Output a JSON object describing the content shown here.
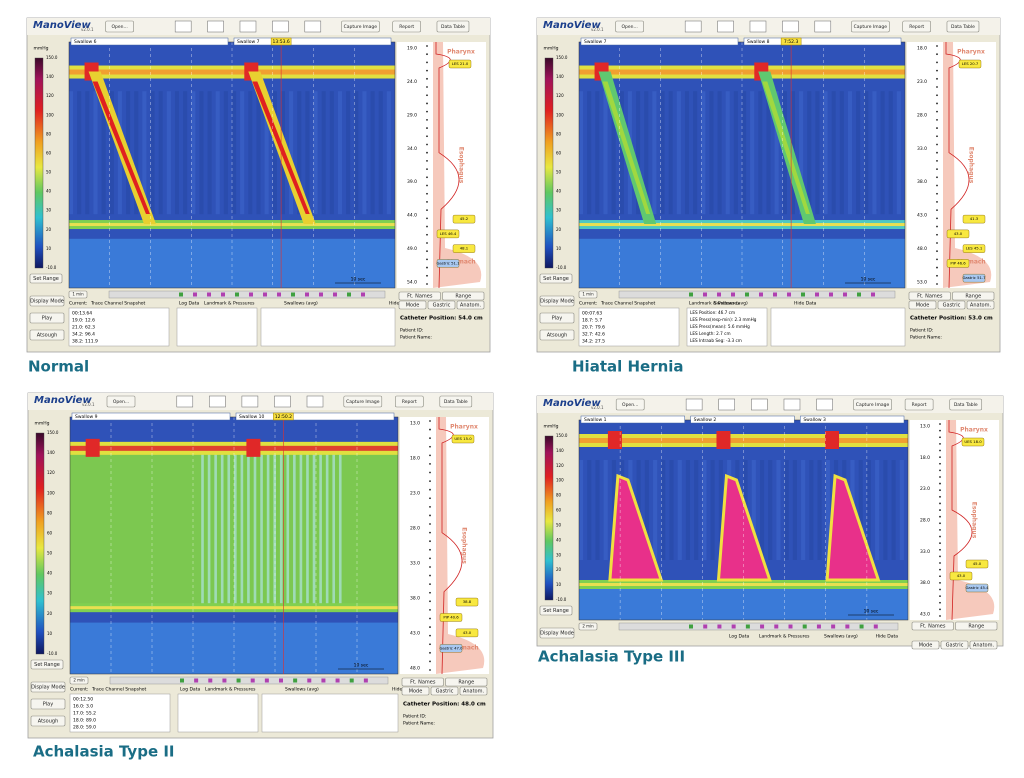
{
  "panels": [
    {
      "caption": "Normal",
      "logo": "ManoView",
      "version": "v2.0.1",
      "buttons": [
        "Open...",
        "Capture Image",
        "Report",
        "Data Table"
      ],
      "unit": "mmHg",
      "scale": [
        "150.0",
        "140",
        "120",
        "100",
        "80",
        "60",
        "50",
        "40",
        "30",
        "20",
        "10",
        "-10.0"
      ],
      "set_range": "Set Range",
      "controls": [
        "Display Mode",
        "Play",
        "Atsough"
      ],
      "swallows": [
        "Swallow 6",
        "Swallow 7"
      ],
      "time_marker": "13:53.6",
      "depths": [
        "19.0",
        "24.0",
        "29.0",
        "34.0",
        "39.0",
        "44.0",
        "49.0",
        "54.0"
      ],
      "regions": [
        "Pharynx",
        "Esophagus",
        "Stomach"
      ],
      "tags": [
        "LES 21.0",
        "45.2",
        "LES 46.4",
        "48.1",
        "Gastric 51.1"
      ],
      "timescale": "10 sec",
      "zoom": "1 min",
      "bottom": {
        "labels": [
          "Current:",
          "Trace Channel Snapshot",
          "Log Data",
          "Landmark & Pressures",
          "Swallows (avg)",
          "Hide Data"
        ],
        "buttons": [
          "Ft. Names",
          "Range",
          "Mode",
          "Gastric",
          "Anatom."
        ],
        "rows": [
          "00:13.64",
          "19.0: 12.6",
          "21.0: 62.3",
          "34.2: 96.4",
          "38.2: 111.9"
        ],
        "landmarks": [],
        "catheter": "Catheter Position: 54.0 cm",
        "patient": [
          "Patient ID:",
          "Patient Name:"
        ]
      }
    },
    {
      "caption": "Hiatal Hernia",
      "logo": "ManoView",
      "version": "v2.0.1",
      "buttons": [
        "Open...",
        "Capture Image",
        "Report",
        "Data Table"
      ],
      "unit": "mmHg",
      "scale": [
        "150.0",
        "140",
        "120",
        "100",
        "80",
        "60",
        "50",
        "40",
        "30",
        "20",
        "10",
        "-10.0"
      ],
      "set_range": "Set Range",
      "controls": [
        "Display Mode",
        "Play",
        "Atsough"
      ],
      "swallows": [
        "Swallow 7",
        "Swallow 8"
      ],
      "time_marker": "7:52.3",
      "depths": [
        "18.0",
        "23.0",
        "28.0",
        "33.0",
        "38.0",
        "43.0",
        "48.0",
        "53.0"
      ],
      "regions": [
        "Pharynx",
        "Esophagus",
        "Stomach"
      ],
      "tags": [
        "LES 20.7",
        "41.3",
        "43.0",
        "LES 45.1",
        "PIP 46.6",
        "Gastric 51.7"
      ],
      "timescale": "10 sec",
      "zoom": "1 min",
      "bottom": {
        "labels": [
          "Current:",
          "Trace Channel Snapshot",
          "Landmark & Pressures",
          "Swallows (avg)",
          "Hide Data"
        ],
        "buttons": [
          "Ft. Names",
          "Range",
          "Mode",
          "Gastric",
          "Anatom."
        ],
        "rows": [
          "00:07.63",
          "18.7: 5.7",
          "20.7: 79.6",
          "32.7: 42.6",
          "34.2: 27.5"
        ],
        "landmarks": [
          "LES Position: 46.7 cm",
          "LES Press(resp-min): 2.3 mmHg",
          "LES Press(mean): 5.6 mmHg",
          "LES Length: 2.7 cm",
          "LES Intraab Seg: -3.3 cm"
        ],
        "catheter": "Catheter Position: 53.0 cm",
        "patient": [
          "Patient ID:",
          "Patient Name:"
        ]
      }
    },
    {
      "caption": "Achalasia Type II",
      "logo": "ManoView",
      "version": "v2.0.1",
      "buttons": [
        "Open...",
        "Capture Image",
        "Report",
        "Data Table"
      ],
      "unit": "mmHg",
      "scale": [
        "150.0",
        "140",
        "120",
        "100",
        "80",
        "60",
        "50",
        "40",
        "30",
        "20",
        "10",
        "-10.0"
      ],
      "set_range": "Set Range",
      "controls": [
        "Display Mode",
        "Play",
        "Atsough"
      ],
      "swallows": [
        "Swallow 9",
        "Swallow 10"
      ],
      "time_marker": "12:50.2",
      "depths": [
        "13.0",
        "18.0",
        "23.0",
        "28.0",
        "33.0",
        "38.0",
        "43.0",
        "48.0"
      ],
      "regions": [
        "Pharynx",
        "Esophagus",
        "Stomach"
      ],
      "tags": [
        "UES 15.0",
        "38.8",
        "PIP 40.6",
        "43.0",
        "Gastric 47.0"
      ],
      "timescale": "10 sec",
      "zoom": "2 min",
      "bottom": {
        "labels": [
          "Current:",
          "Trace Channel Snapshot",
          "Log Data",
          "Landmark & Pressures",
          "Swallows (avg)",
          "Hide Data"
        ],
        "buttons": [
          "Ft. Names",
          "Range",
          "Mode",
          "Gastric",
          "Anatom."
        ],
        "rows": [
          "00:12.50",
          "16.0: 3.0",
          "17.0: 55.2",
          "18.0: 89.0",
          "28.0: 59.0"
        ],
        "landmarks": [],
        "catheter": "Catheter Position: 48.0 cm",
        "patient": [
          "Patient ID:",
          "Patient Name:"
        ]
      }
    },
    {
      "caption": "Achalasia Type III",
      "logo": "ManoView",
      "version": "v2.0.1",
      "buttons": [
        "Open...",
        "Capture Image",
        "Report",
        "Data Table"
      ],
      "unit": "mmHg",
      "scale": [
        "150.0",
        "140",
        "120",
        "100",
        "80",
        "60",
        "50",
        "40",
        "30",
        "20",
        "10",
        "-10.0"
      ],
      "set_range": "Set Range",
      "controls": [
        "Display Mode"
      ],
      "swallows": [
        "Swallow 1",
        "Swallow 2",
        "Swallow 3"
      ],
      "depths": [
        "13.0",
        "18.0",
        "23.0",
        "28.0",
        "33.0",
        "38.0",
        "43.0"
      ],
      "regions": [
        "Pharynx",
        "Esophagus"
      ],
      "tags": [
        "UES 18.0",
        "45.0",
        "43.0",
        "Gastric 45.4"
      ],
      "timescale": "10 sec",
      "zoom": "2 min",
      "bottom": {
        "labels": [
          "Log Data",
          "Landmark & Pressures",
          "Swallows (avg)",
          "Hide Data"
        ],
        "buttons": [
          "Ft. Names",
          "Range",
          "Mode",
          "Gastric",
          "Anatom."
        ]
      }
    }
  ]
}
